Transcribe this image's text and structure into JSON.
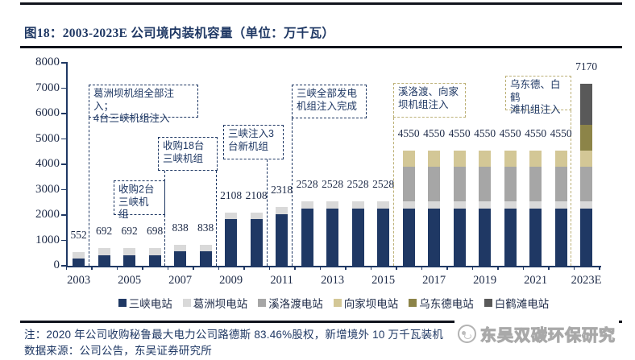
{
  "title": "图18：2003-2023E 公司境内装机容量（单位：万千瓦）",
  "chart_data": {
    "type": "bar",
    "stacked": true,
    "title": "2003-2023E 公司境内装机容量",
    "unit": "万千瓦",
    "grid": false,
    "legend_position": "bottom",
    "ylim": [
      0,
      8000
    ],
    "y_ticks": [
      0,
      1000,
      2000,
      3000,
      4000,
      5000,
      6000,
      7000,
      8000
    ],
    "categories": [
      "2003",
      "2004",
      "2005",
      "2006",
      "2007",
      "2008",
      "2009",
      "2010",
      "2011",
      "2012",
      "2013",
      "2014",
      "2015",
      "2016",
      "2017",
      "2018",
      "2019",
      "2020",
      "2021",
      "2022",
      "2023E"
    ],
    "x_tick_labels": [
      "2003",
      "2005",
      "2007",
      "2009",
      "2011",
      "2013",
      "2015",
      "2017",
      "2019",
      "2021",
      "2023E"
    ],
    "totals": [
      552,
      692,
      692,
      698,
      838,
      838,
      2108,
      2108,
      2318,
      2528,
      2528,
      2528,
      2528,
      4550,
      4550,
      4550,
      4550,
      4550,
      4550,
      4550,
      7170
    ],
    "series": [
      {
        "name": "三峡电站",
        "color": "#1F3864",
        "values": [
          280,
          420,
          420,
          426,
          566,
          566,
          1836,
          1836,
          2046,
          2256,
          2256,
          2256,
          2256,
          2250,
          2250,
          2250,
          2250,
          2250,
          2250,
          2250,
          2250
        ]
      },
      {
        "name": "葛洲坝电站",
        "color": "#D9D9D9",
        "values": [
          272,
          272,
          272,
          272,
          272,
          272,
          272,
          272,
          272,
          272,
          272,
          272,
          272,
          274,
          274,
          274,
          274,
          274,
          274,
          274,
          274
        ]
      },
      {
        "name": "溪洛渡电站",
        "color": "#A6A6A6",
        "values": [
          0,
          0,
          0,
          0,
          0,
          0,
          0,
          0,
          0,
          0,
          0,
          0,
          0,
          1386,
          1386,
          1386,
          1386,
          1386,
          1386,
          1386,
          1386
        ]
      },
      {
        "name": "向家坝电站",
        "color": "#D3C796",
        "values": [
          0,
          0,
          0,
          0,
          0,
          0,
          0,
          0,
          0,
          0,
          0,
          0,
          0,
          640,
          640,
          640,
          640,
          640,
          640,
          640,
          640
        ]
      },
      {
        "name": "乌东德电站",
        "color": "#8C8448",
        "values": [
          0,
          0,
          0,
          0,
          0,
          0,
          0,
          0,
          0,
          0,
          0,
          0,
          0,
          0,
          0,
          0,
          0,
          0,
          0,
          0,
          1020
        ]
      },
      {
        "name": "白鹤滩电站",
        "color": "#595959",
        "values": [
          0,
          0,
          0,
          0,
          0,
          0,
          0,
          0,
          0,
          0,
          0,
          0,
          0,
          0,
          0,
          0,
          0,
          0,
          0,
          0,
          1600
        ]
      }
    ]
  },
  "annotations": {
    "gezhouba_all": {
      "text": "葛洲坝机组全部注入；\n4台三峡机组注入"
    },
    "buy_2_units": {
      "text": "收购2台\n三峡机\n组"
    },
    "buy_18_units": {
      "text": "收购18台\n三峡机组"
    },
    "inject_3_units": {
      "text": "三峡注入3\n台新机组"
    },
    "sanxia_complete": {
      "text": "三峡全部发电\n机组注入完成"
    },
    "xiluodu_xiangjiaba": {
      "text": "溪洛渡、向家\n坝机组注入"
    },
    "wudongde_baihetan": {
      "text": "乌东德、白鹤\n滩机组注入"
    }
  },
  "notes": {
    "line1": "注：2020 年公司收购秘鲁最大电力公司路德斯 83.46%股权，新增境外 10 万千瓦装机",
    "line2": "数据来源：公司公告，东吴证券研究所"
  },
  "watermark": {
    "text": "东吴双碳环保研究"
  },
  "colors": {
    "accent_navy": "#1F3864",
    "dash_khaki": "#BCB076",
    "rule": "#10131C"
  }
}
